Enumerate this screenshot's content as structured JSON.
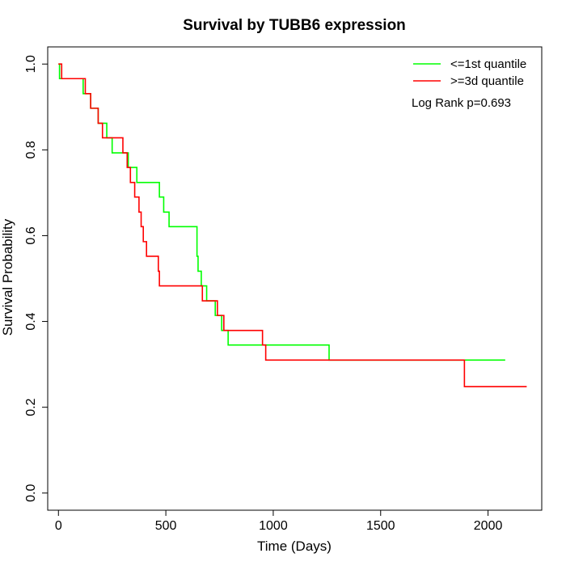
{
  "chart_data": {
    "type": "line",
    "title": "Survival by TUBB6 expression",
    "xlabel": "Time (Days)",
    "ylabel": "Survival Probability",
    "xlim": [
      -50,
      2250
    ],
    "ylim": [
      -0.04,
      1.04
    ],
    "x_ticks": [
      0,
      500,
      1000,
      1500,
      2000
    ],
    "x_tick_labels": [
      "0",
      "500",
      "1000",
      "1500",
      "2000"
    ],
    "y_ticks": [
      0.0,
      0.2,
      0.4,
      0.6,
      0.8,
      1.0
    ],
    "y_tick_labels": [
      "0.0",
      "0.2",
      "0.4",
      "0.6",
      "0.8",
      "1.0"
    ],
    "grid": false,
    "legend_position": "top-right",
    "step": true,
    "series": [
      {
        "name": "<=1st quantile",
        "color": "#00ff00",
        "x": [
          0,
          5,
          115,
          150,
          185,
          225,
          250,
          325,
          335,
          365,
          470,
          490,
          515,
          645,
          650,
          665,
          690,
          730,
          760,
          790,
          1260,
          2080
        ],
        "y": [
          1.0,
          0.966,
          0.931,
          0.897,
          0.862,
          0.828,
          0.793,
          0.759,
          0.759,
          0.724,
          0.69,
          0.655,
          0.621,
          0.552,
          0.517,
          0.483,
          0.448,
          0.414,
          0.379,
          0.345,
          0.31,
          0.31
        ]
      },
      {
        "name": ">=3d quantile",
        "color": "#ff0000",
        "x": [
          0,
          15,
          125,
          150,
          185,
          205,
          270,
          300,
          320,
          335,
          355,
          375,
          385,
          395,
          410,
          465,
          470,
          670,
          740,
          770,
          950,
          965,
          1890,
          2180
        ],
        "y": [
          1.0,
          0.966,
          0.931,
          0.897,
          0.862,
          0.828,
          0.828,
          0.793,
          0.759,
          0.724,
          0.69,
          0.655,
          0.621,
          0.586,
          0.552,
          0.517,
          0.483,
          0.448,
          0.414,
          0.379,
          0.345,
          0.31,
          0.248,
          0.248
        ]
      }
    ],
    "annotations": [
      "Log Rank p=0.693"
    ]
  }
}
